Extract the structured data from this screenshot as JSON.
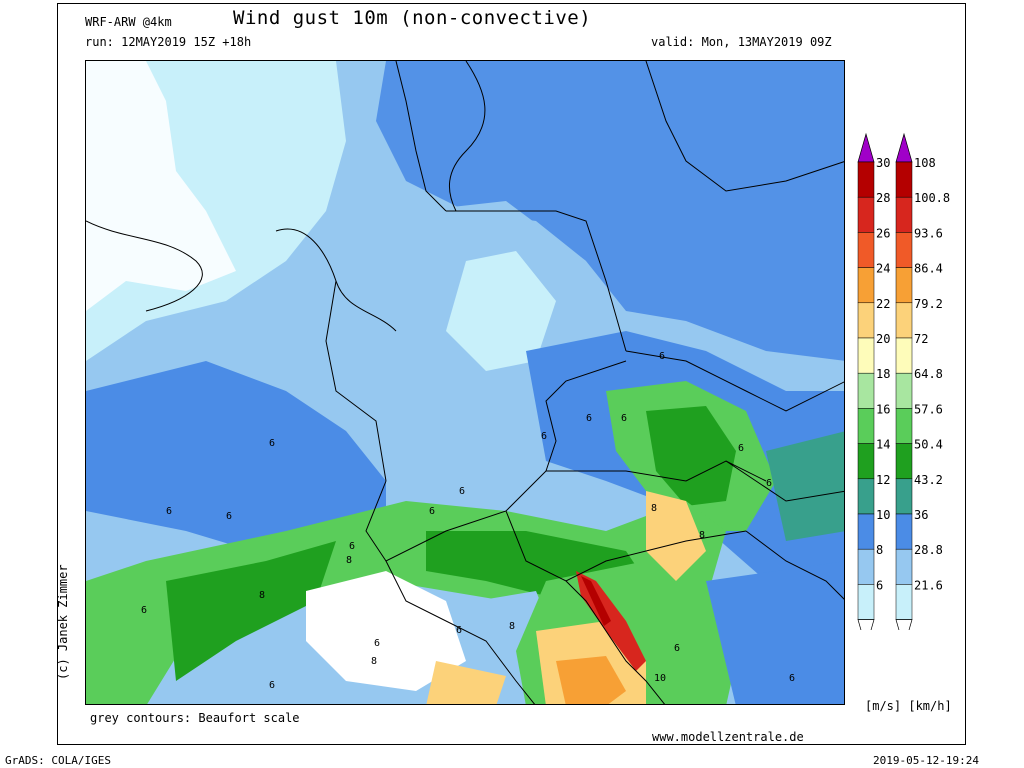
{
  "header": {
    "model": "WRF-ARW @4km",
    "title": "Wind gust 10m (non-convective)",
    "run": "run: 12MAY2019 15Z +18h",
    "valid": "valid: Mon, 13MAY2019 09Z"
  },
  "credit": "(c) Janek Zimmer",
  "footer": {
    "note": "grey contours: Beaufort scale",
    "site": "www.modellzentrale.de",
    "grads": "GrADS: COLA/IGES",
    "timestamp": "2019-05-12-19:24"
  },
  "units": "[m/s] [km/h]",
  "legend": {
    "ms": [
      "30",
      "28",
      "26",
      "24",
      "22",
      "20",
      "18",
      "16",
      "14",
      "12",
      "10",
      "8",
      "6"
    ],
    "kmh": [
      "108",
      "100.8",
      "93.6",
      "86.4",
      "79.2",
      "72",
      "64.8",
      "57.6",
      "50.4",
      "43.2",
      "36",
      "28.8",
      "21.6"
    ],
    "colors": [
      "#b40000",
      "#d7261e",
      "#f05a28",
      "#f7a035",
      "#fcd27a",
      "#fefcba",
      "#a8e6a0",
      "#5acd5a",
      "#1fa01f",
      "#38a08c",
      "#4b8ce6",
      "#96c8f0",
      "#c8f0fa"
    ],
    "overflow_color": "#a000c8"
  },
  "map": {
    "colors": {
      "water_light": "#c8f0fa",
      "light_blue": "#96c8f0",
      "blue": "#4b8ce6",
      "teal": "#38a08c",
      "green": "#1fa01f",
      "light_green": "#5acd5a",
      "yellow": "#fcd27a",
      "orange": "#f7a035",
      "red": "#d7261e"
    },
    "value_labels": [
      "6",
      "6",
      "6",
      "6",
      "6",
      "6",
      "6",
      "6",
      "6",
      "6",
      "6",
      "6",
      "6",
      "6",
      "6",
      "6",
      "6",
      "6",
      "8",
      "8",
      "8",
      "8",
      "8",
      "8",
      "10"
    ]
  }
}
